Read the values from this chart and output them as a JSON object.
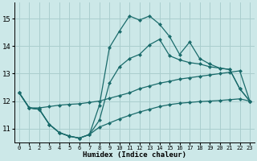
{
  "xlabel": "Humidex (Indice chaleur)",
  "bg_color": "#cce8e8",
  "grid_color": "#aacece",
  "line_color": "#1a6b6b",
  "xlim": [
    -0.5,
    23.5
  ],
  "ylim": [
    10.5,
    15.6
  ],
  "yticks": [
    11,
    12,
    13,
    14,
    15
  ],
  "xticks": [
    0,
    1,
    2,
    3,
    4,
    5,
    6,
    7,
    8,
    9,
    10,
    11,
    12,
    13,
    14,
    15,
    16,
    17,
    18,
    19,
    20,
    21,
    22,
    23
  ],
  "line_top_x": [
    0,
    1,
    2,
    3,
    4,
    5,
    6,
    7,
    8,
    9,
    10,
    11,
    12,
    13,
    14,
    15,
    16,
    17,
    18,
    19,
    20,
    21,
    22,
    23
  ],
  "line_top_y": [
    12.3,
    11.75,
    11.7,
    11.15,
    10.85,
    10.72,
    10.65,
    10.78,
    11.85,
    13.95,
    14.55,
    15.1,
    14.95,
    15.1,
    14.8,
    14.35,
    13.7,
    14.15,
    13.55,
    13.35,
    13.2,
    13.15,
    12.45,
    12.0
  ],
  "line_mid_x": [
    0,
    1,
    2,
    3,
    4,
    5,
    6,
    7,
    8,
    9,
    10,
    11,
    12,
    13,
    14,
    15,
    16,
    17,
    18,
    19,
    20,
    21,
    22,
    23
  ],
  "line_mid_y": [
    12.3,
    11.75,
    11.7,
    11.15,
    10.85,
    10.72,
    10.65,
    10.78,
    11.3,
    12.65,
    13.25,
    13.55,
    13.7,
    14.05,
    14.25,
    13.65,
    13.5,
    13.4,
    13.35,
    13.25,
    13.2,
    13.15,
    12.45,
    12.0
  ],
  "line_flat_x": [
    0,
    1,
    2,
    3,
    4,
    5,
    6,
    7,
    8,
    9,
    10,
    11,
    12,
    13,
    14,
    15,
    16,
    17,
    18,
    19,
    20,
    21,
    22,
    23
  ],
  "line_flat_y": [
    12.3,
    11.75,
    11.75,
    11.8,
    11.85,
    11.88,
    11.9,
    11.95,
    12.0,
    12.1,
    12.2,
    12.3,
    12.45,
    12.55,
    12.65,
    12.72,
    12.8,
    12.85,
    12.9,
    12.95,
    13.0,
    13.05,
    13.1,
    12.0
  ],
  "line_bot_x": [
    0,
    1,
    2,
    3,
    4,
    5,
    6,
    7,
    8,
    9,
    10,
    11,
    12,
    13,
    14,
    15,
    16,
    17,
    18,
    19,
    20,
    21,
    22,
    23
  ],
  "line_bot_y": [
    12.3,
    11.75,
    11.7,
    11.15,
    10.85,
    10.72,
    10.65,
    10.78,
    11.05,
    11.2,
    11.35,
    11.48,
    11.6,
    11.7,
    11.8,
    11.87,
    11.92,
    11.95,
    11.98,
    12.0,
    12.02,
    12.05,
    12.08,
    12.0
  ]
}
